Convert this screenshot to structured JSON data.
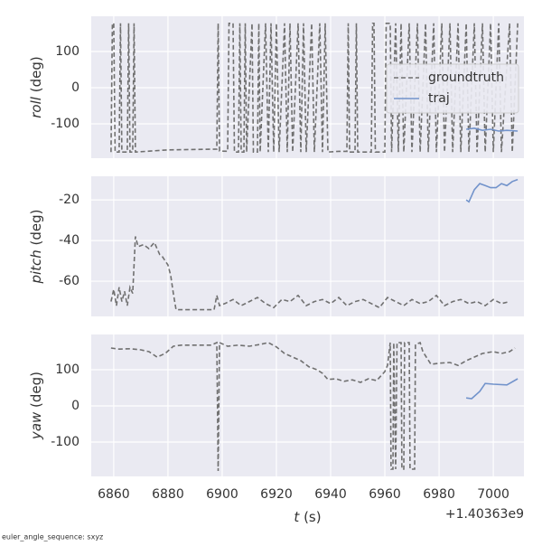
{
  "chart_data": [
    {
      "type": "line",
      "ylabel_var": "roll",
      "ylabel_unit": "(deg)",
      "xlim": [
        6851.7,
        7011.3
      ],
      "xticks": [
        6860,
        6880,
        6900,
        6920,
        6940,
        6960,
        6980,
        7000
      ],
      "ylim": [
        -195,
        197.5
      ],
      "yticks": [
        -100,
        0,
        100
      ],
      "grid": true,
      "legend": "upper right",
      "series": [
        {
          "name": "groundtruth",
          "color": "#707070",
          "dashed": true,
          "x": [
            6859,
            6859.5,
            6860,
            6860.5,
            6862,
            6862.5,
            6863,
            6865,
            6865.5,
            6866,
            6867,
            6867.5,
            6868,
            6880,
            6898,
            6898.5,
            6899,
            6902,
            6902.5,
            6904,
            6904.5,
            6906,
            6906.5,
            6907,
            6908,
            6908.5,
            6909,
            6911,
            6911.5,
            6913,
            6913.5,
            6914,
            6916,
            6917,
            6918,
            6919,
            6920,
            6921,
            6923,
            6924,
            6925,
            6926,
            6928,
            6929,
            6930,
            6931,
            6933,
            6934,
            6936,
            6937,
            6938,
            6939,
            6943,
            6946,
            6946.5,
            6947,
            6949,
            6949.5,
            6950,
            6955,
            6955.5,
            6956,
            6956.5,
            6960,
            6960.5,
            6962,
            6962.5,
            6964,
            6965,
            6966,
            6967,
            6969,
            6970,
            6972,
            6973,
            6975,
            6976,
            6978,
            6979,
            6981,
            6982,
            6984,
            6985,
            6987,
            6988,
            6990,
            6991,
            6993,
            6994,
            6996,
            6997,
            6999,
            7000,
            7002,
            7003,
            7006,
            7007,
            7009
          ],
          "values": [
            -178,
            178,
            178,
            -178,
            -178,
            178,
            -178,
            -178,
            178,
            -178,
            -178,
            178,
            -178,
            -172,
            -170,
            178,
            -175,
            -176,
            178,
            178,
            -178,
            -178,
            178,
            -178,
            -178,
            178,
            -178,
            178,
            -178,
            -178,
            178,
            -178,
            178,
            -178,
            178,
            -178,
            178,
            -178,
            178,
            -178,
            178,
            -178,
            178,
            -178,
            178,
            -178,
            178,
            -178,
            178,
            -178,
            178,
            -178,
            -176,
            -176,
            178,
            -178,
            -178,
            178,
            -178,
            -178,
            178,
            178,
            -178,
            -178,
            178,
            178,
            -178,
            178,
            -178,
            178,
            -178,
            178,
            -178,
            178,
            -178,
            178,
            -178,
            178,
            -178,
            178,
            -178,
            178,
            -178,
            178,
            -178,
            178,
            -178,
            178,
            -178,
            178,
            -178,
            178,
            -178,
            178,
            -178,
            178,
            -178,
            178
          ]
        },
        {
          "name": "traj",
          "color": "#7293cb",
          "dashed": false,
          "x": [
            6990,
            6993,
            6996,
            6999,
            7002,
            7005,
            7009
          ],
          "values": [
            -115,
            -112,
            -118,
            -115,
            -120,
            -118,
            -120
          ]
        }
      ]
    },
    {
      "type": "line",
      "ylabel_var": "pitch",
      "ylabel_unit": "(deg)",
      "xlim": [
        6851.7,
        7011.3
      ],
      "xticks": [
        6860,
        6880,
        6900,
        6920,
        6940,
        6960,
        6980,
        7000
      ],
      "ylim": [
        -77.3,
        -8.4
      ],
      "yticks": [
        -60,
        -40,
        -20
      ],
      "grid": true,
      "series": [
        {
          "name": "groundtruth",
          "color": "#707070",
          "dashed": true,
          "x": [
            6859,
            6860,
            6861,
            6862,
            6863,
            6864,
            6865,
            6866,
            6867,
            6868,
            6869,
            6871,
            6873,
            6875,
            6876,
            6877,
            6878,
            6879,
            6880,
            6881,
            6882,
            6883,
            6897,
            6898,
            6899,
            6901,
            6904,
            6907,
            6910,
            6913,
            6916,
            6919,
            6922,
            6925,
            6928,
            6931,
            6934,
            6937,
            6940,
            6943,
            6946,
            6949,
            6952,
            6955,
            6958,
            6961,
            6964,
            6967,
            6970,
            6973,
            6976,
            6979,
            6982,
            6985,
            6988,
            6991,
            6994,
            6997,
            7000,
            7003,
            7006
          ],
          "values": [
            -70,
            -64,
            -72,
            -63,
            -70,
            -65,
            -72,
            -63,
            -66,
            -38,
            -43,
            -42,
            -44,
            -41,
            -44,
            -47,
            -48,
            -50,
            -52,
            -57,
            -66,
            -74,
            -74,
            -67,
            -72,
            -71,
            -69,
            -72,
            -70,
            -68,
            -71,
            -73,
            -69,
            -70,
            -67,
            -72,
            -70,
            -69,
            -71,
            -68,
            -72,
            -70,
            -69,
            -71,
            -73,
            -68,
            -70,
            -72,
            -69,
            -71,
            -70,
            -67,
            -72,
            -70,
            -69,
            -71,
            -70,
            -72,
            -69,
            -71,
            -70
          ]
        },
        {
          "name": "traj",
          "color": "#7293cb",
          "dashed": false,
          "x": [
            6990,
            6991,
            6993,
            6995,
            6997,
            6999,
            7001,
            7003,
            7005,
            7007,
            7009
          ],
          "values": [
            -20,
            -21,
            -15,
            -12,
            -13,
            -14,
            -14,
            -12,
            -13,
            -11,
            -10
          ]
        }
      ]
    },
    {
      "type": "line",
      "ylabel_var": "yaw",
      "ylabel_unit": "(deg)",
      "xlabel_var": "t",
      "xlabel_unit": "(s)",
      "x_offset_label": "+1.40363e9",
      "xlim": [
        6851.7,
        7011.3
      ],
      "xticks": [
        6860,
        6880,
        6900,
        6920,
        6940,
        6960,
        6980,
        7000
      ],
      "ylim": [
        -195,
        197.5
      ],
      "yticks": [
        -100,
        0,
        100
      ],
      "grid": true,
      "series": [
        {
          "name": "groundtruth",
          "color": "#707070",
          "dashed": true,
          "x": [
            6859,
            6862,
            6866,
            6870,
            6873,
            6876,
            6879,
            6882,
            6885,
            6890,
            6896,
            6898,
            6898.5,
            6899,
            6902,
            6906,
            6910,
            6914,
            6917,
            6920,
            6923,
            6926,
            6929,
            6932,
            6935,
            6937,
            6939,
            6942,
            6945,
            6948,
            6951,
            6954,
            6957,
            6960,
            6961,
            6962,
            6962.3,
            6963,
            6963.3,
            6964,
            6964.5,
            6966,
            6966.3,
            6967,
            6967.3,
            6969,
            6969.3,
            6971,
            6971.3,
            6973,
            6974,
            6977,
            6980,
            6984,
            6987,
            6990,
            6993,
            6996,
            7000,
            7003,
            7006,
            7008
          ],
          "values": [
            160,
            157,
            158,
            155,
            150,
            135,
            145,
            165,
            168,
            168,
            168,
            175,
            -180,
            175,
            165,
            168,
            165,
            170,
            175,
            163,
            145,
            135,
            125,
            108,
            100,
            90,
            73,
            75,
            68,
            72,
            65,
            75,
            70,
            95,
            112,
            175,
            -175,
            -175,
            175,
            -175,
            175,
            175,
            -175,
            -175,
            175,
            175,
            -175,
            -175,
            170,
            175,
            150,
            115,
            118,
            120,
            112,
            125,
            135,
            145,
            150,
            145,
            150,
            160
          ]
        },
        {
          "name": "traj",
          "color": "#7293cb",
          "dashed": false,
          "x": [
            6990,
            6992,
            6995,
            6997,
            7000,
            7005,
            7009
          ],
          "values": [
            22,
            20,
            40,
            62,
            60,
            58,
            75
          ]
        }
      ]
    }
  ],
  "footer": "euler_angle_sequence: sxyz"
}
